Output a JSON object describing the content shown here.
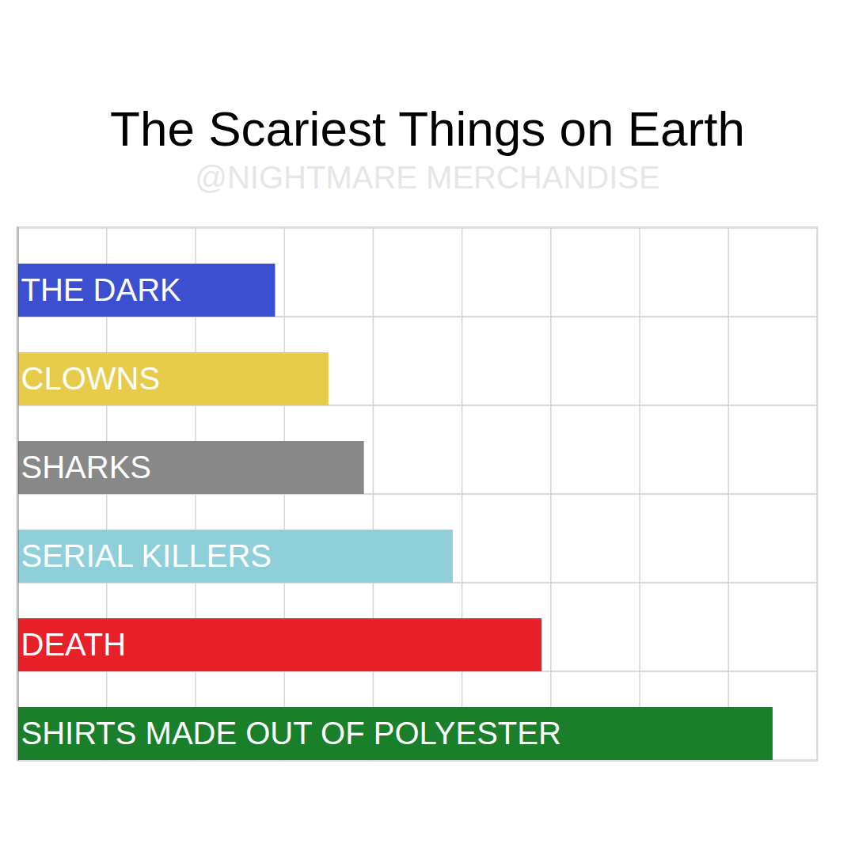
{
  "chart_data": {
    "type": "bar",
    "title": "The Scariest Things on Earth",
    "subtitle": "@NIGHTMARE MERCHANDISE",
    "categories": [
      "THE DARK",
      "CLOWNS",
      "SHARKS",
      "SERIAL KILLERS",
      "DEATH",
      "SHIRTS MADE OUT OF POLYESTER"
    ],
    "values": [
      2.9,
      3.5,
      3.9,
      4.9,
      5.9,
      8.5
    ],
    "colors": [
      "#3b4fd0",
      "#e6cc4a",
      "#888888",
      "#8ecfd9",
      "#e8202a",
      "#1a7f2a"
    ],
    "orientation": "horizontal",
    "xlim": [
      0,
      9
    ],
    "xticks": [
      0,
      1,
      2,
      3,
      4,
      5,
      6,
      7,
      8,
      9
    ],
    "grid": true,
    "tick_labels": false
  }
}
